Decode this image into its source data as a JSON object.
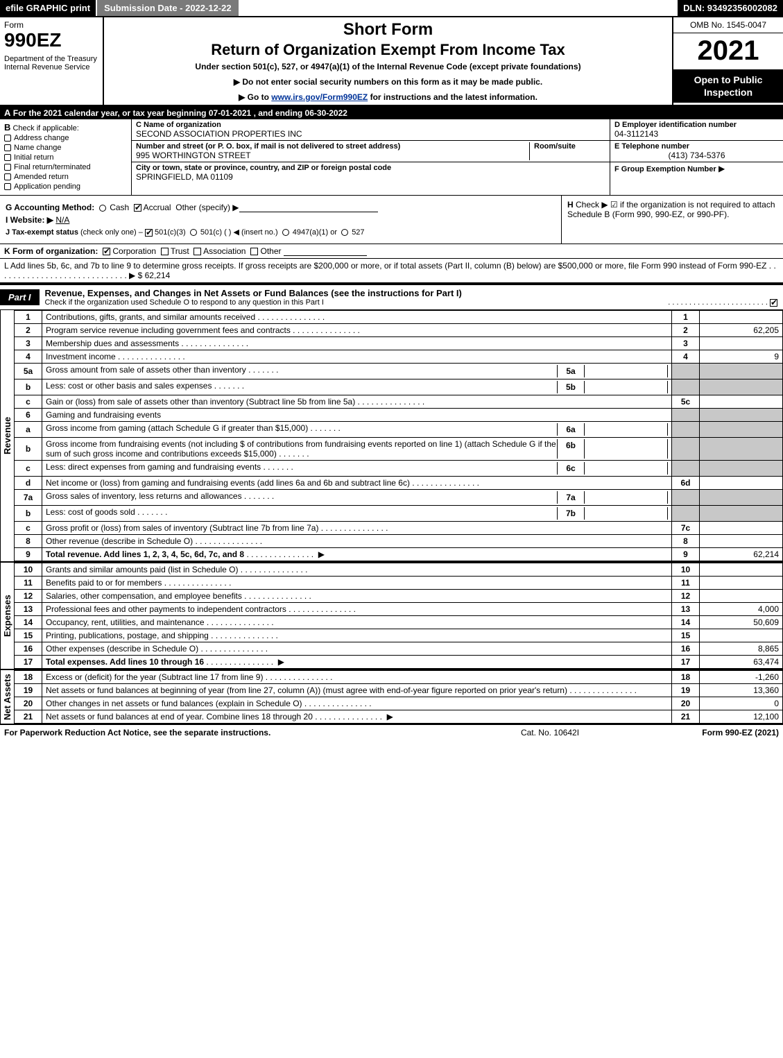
{
  "topbar": {
    "efile": "efile GRAPHIC print",
    "submission_label": "Submission Date - 2022-12-22",
    "dln": "DLN: 93492356002082"
  },
  "header": {
    "form_word": "Form",
    "form_number": "990EZ",
    "dept": "Department of the Treasury\nInternal Revenue Service",
    "title1": "Short Form",
    "title2": "Return of Organization Exempt From Income Tax",
    "subtitle": "Under section 501(c), 527, or 4947(a)(1) of the Internal Revenue Code (except private foundations)",
    "note1": "▶ Do not enter social security numbers on this form as it may be made public.",
    "note2_pre": "▶ Go to ",
    "note2_link": "www.irs.gov/Form990EZ",
    "note2_post": " for instructions and the latest information.",
    "omb": "OMB No. 1545-0047",
    "year": "2021",
    "open": "Open to Public Inspection"
  },
  "rowA": {
    "lead": "A",
    "text": "For the 2021 calendar year, or tax year beginning 07-01-2021 , and ending 06-30-2022"
  },
  "B": {
    "lead": "B",
    "label": "Check if applicable:",
    "opts": [
      "Address change",
      "Name change",
      "Initial return",
      "Final return/terminated",
      "Amended return",
      "Application pending"
    ]
  },
  "C": {
    "name_label": "C Name of organization",
    "name": "SECOND ASSOCIATION PROPERTIES INC",
    "street_label": "Number and street (or P. O. box, if mail is not delivered to street address)",
    "room_label": "Room/suite",
    "street": "995 WORTHINGTON STREET",
    "city_label": "City or town, state or province, country, and ZIP or foreign postal code",
    "city": "SPRINGFIELD, MA  01109"
  },
  "D": {
    "label": "D Employer identification number",
    "val": "04-3112143"
  },
  "E": {
    "label": "E Telephone number",
    "val": "(413) 734-5376"
  },
  "F": {
    "label": "F Group Exemption Number",
    "arrow": "▶"
  },
  "G": {
    "label": "G Accounting Method:",
    "cash": "Cash",
    "accrual": "Accrual",
    "other": "Other (specify) ▶"
  },
  "H": {
    "lead": "H",
    "text": "Check ▶ ☑ if the organization is not required to attach Schedule B (Form 990, 990-EZ, or 990-PF)."
  },
  "I": {
    "label": "I Website: ▶",
    "val": "N/A"
  },
  "J": {
    "label": "J Tax-exempt status",
    "sub": "(check only one) –",
    "opt1": "501(c)(3)",
    "opt2": "501(c) (   ) ◀ (insert no.)",
    "opt3": "4947(a)(1) or",
    "opt4": "527"
  },
  "K": {
    "label": "K Form of organization:",
    "opts": [
      "Corporation",
      "Trust",
      "Association",
      "Other"
    ]
  },
  "L": {
    "text": "L Add lines 5b, 6c, and 7b to line 9 to determine gross receipts. If gross receipts are $200,000 or more, or if total assets (Part II, column (B) below) are $500,000 or more, file Form 990 instead of Form 990-EZ",
    "dots": ". . . . . . . . . . . . . . . . . . . . . . . . . . . . . ▶",
    "amount": "$ 62,214"
  },
  "part1": {
    "tag": "Part I",
    "title": "Revenue, Expenses, and Changes in Net Assets or Fund Balances",
    "subtitle": "(see the instructions for Part I)",
    "checkline": "Check if the organization used Schedule O to respond to any question in this Part I"
  },
  "revenue": {
    "side": "Revenue",
    "rows": [
      {
        "n": "1",
        "desc": "Contributions, gifts, grants, and similar amounts received",
        "lab": "1",
        "amt": ""
      },
      {
        "n": "2",
        "desc": "Program service revenue including government fees and contracts",
        "lab": "2",
        "amt": "62,205"
      },
      {
        "n": "3",
        "desc": "Membership dues and assessments",
        "lab": "3",
        "amt": ""
      },
      {
        "n": "4",
        "desc": "Investment income",
        "lab": "4",
        "amt": "9"
      },
      {
        "n": "5a",
        "desc": "Gross amount from sale of assets other than inventory",
        "inline": "5a",
        "inline_amt": "",
        "shade": true
      },
      {
        "n": "b",
        "desc": "Less: cost or other basis and sales expenses",
        "inline": "5b",
        "inline_amt": "",
        "shade": true
      },
      {
        "n": "c",
        "desc": "Gain or (loss) from sale of assets other than inventory (Subtract line 5b from line 5a)",
        "lab": "5c",
        "amt": ""
      },
      {
        "n": "6",
        "desc": "Gaming and fundraising events",
        "shade": true,
        "noamt": true
      },
      {
        "n": "a",
        "desc": "Gross income from gaming (attach Schedule G if greater than $15,000)",
        "inline": "6a",
        "inline_amt": "",
        "shade": true
      },
      {
        "n": "b",
        "desc": "Gross income from fundraising events (not including $                of contributions from fundraising events reported on line 1) (attach Schedule G if the sum of such gross income and contributions exceeds $15,000)",
        "inline": "6b",
        "inline_amt": "",
        "shade": true
      },
      {
        "n": "c",
        "desc": "Less: direct expenses from gaming and fundraising events",
        "inline": "6c",
        "inline_amt": "",
        "shade": true
      },
      {
        "n": "d",
        "desc": "Net income or (loss) from gaming and fundraising events (add lines 6a and 6b and subtract line 6c)",
        "lab": "6d",
        "amt": ""
      },
      {
        "n": "7a",
        "desc": "Gross sales of inventory, less returns and allowances",
        "inline": "7a",
        "inline_amt": "",
        "shade": true
      },
      {
        "n": "b",
        "desc": "Less: cost of goods sold",
        "inline": "7b",
        "inline_amt": "",
        "shade": true
      },
      {
        "n": "c",
        "desc": "Gross profit or (loss) from sales of inventory (Subtract line 7b from line 7a)",
        "lab": "7c",
        "amt": ""
      },
      {
        "n": "8",
        "desc": "Other revenue (describe in Schedule O)",
        "lab": "8",
        "amt": ""
      },
      {
        "n": "9",
        "desc": "Total revenue. Add lines 1, 2, 3, 4, 5c, 6d, 7c, and 8",
        "lab": "9",
        "amt": "62,214",
        "bold": true,
        "arrow": true
      }
    ]
  },
  "expenses": {
    "side": "Expenses",
    "rows": [
      {
        "n": "10",
        "desc": "Grants and similar amounts paid (list in Schedule O)",
        "lab": "10",
        "amt": ""
      },
      {
        "n": "11",
        "desc": "Benefits paid to or for members",
        "lab": "11",
        "amt": ""
      },
      {
        "n": "12",
        "desc": "Salaries, other compensation, and employee benefits",
        "lab": "12",
        "amt": ""
      },
      {
        "n": "13",
        "desc": "Professional fees and other payments to independent contractors",
        "lab": "13",
        "amt": "4,000"
      },
      {
        "n": "14",
        "desc": "Occupancy, rent, utilities, and maintenance",
        "lab": "14",
        "amt": "50,609"
      },
      {
        "n": "15",
        "desc": "Printing, publications, postage, and shipping",
        "lab": "15",
        "amt": ""
      },
      {
        "n": "16",
        "desc": "Other expenses (describe in Schedule O)",
        "lab": "16",
        "amt": "8,865"
      },
      {
        "n": "17",
        "desc": "Total expenses. Add lines 10 through 16",
        "lab": "17",
        "amt": "63,474",
        "bold": true,
        "arrow": true
      }
    ]
  },
  "netassets": {
    "side": "Net Assets",
    "rows": [
      {
        "n": "18",
        "desc": "Excess or (deficit) for the year (Subtract line 17 from line 9)",
        "lab": "18",
        "amt": "-1,260"
      },
      {
        "n": "19",
        "desc": "Net assets or fund balances at beginning of year (from line 27, column (A)) (must agree with end-of-year figure reported on prior year's return)",
        "lab": "19",
        "amt": "13,360"
      },
      {
        "n": "20",
        "desc": "Other changes in net assets or fund balances (explain in Schedule O)",
        "lab": "20",
        "amt": "0"
      },
      {
        "n": "21",
        "desc": "Net assets or fund balances at end of year. Combine lines 18 through 20",
        "lab": "21",
        "amt": "12,100",
        "arrow": true
      }
    ]
  },
  "footer": {
    "left": "For Paperwork Reduction Act Notice, see the separate instructions.",
    "mid": "Cat. No. 10642I",
    "right_pre": "Form ",
    "right_form": "990-EZ",
    "right_post": " (2021)"
  },
  "colors": {
    "black": "#000000",
    "white": "#ffffff",
    "gray_btn": "#7a7a7a",
    "shade": "#c8c8c8",
    "link": "#003399"
  }
}
